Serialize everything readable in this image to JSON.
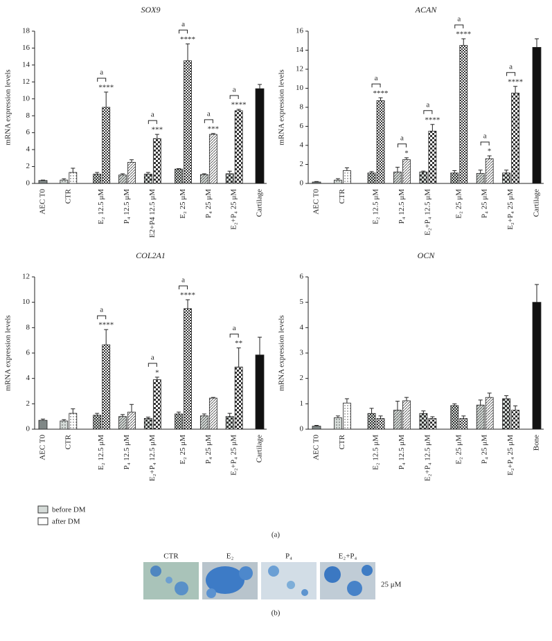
{
  "chart_data": [
    {
      "type": "bar",
      "title": "SOX9",
      "ylabel": "mRNA expression levels",
      "categories": [
        "AEC T0",
        "CTR",
        "E₂ 12.5 μM",
        "P₄ 12.5 μM",
        "E2+P4 12.5 μM",
        "E₂ 25 μM",
        "P₄ 25 μM",
        "E₂+P₄ 25 μM",
        "Cartilage"
      ],
      "ylim": [
        0,
        18
      ],
      "yticks": [
        0,
        2,
        4,
        6,
        8,
        10,
        12,
        14,
        16,
        18
      ],
      "series": [
        {
          "name": "before DM",
          "color": "#d5dbd8",
          "values": [
            null,
            0.4,
            1.1,
            1.0,
            1.1,
            1.7,
            1.05,
            1.15,
            null
          ],
          "errors": [
            null,
            0.15,
            0.2,
            0.15,
            0.2,
            0.05,
            0.1,
            0.3,
            null
          ]
        },
        {
          "name": "after DM",
          "color": "#ffffff",
          "values": [
            null,
            1.3,
            9.0,
            2.5,
            5.3,
            14.5,
            5.8,
            8.6,
            null
          ],
          "errors": [
            null,
            0.5,
            1.8,
            0.3,
            0.5,
            2.0,
            0.1,
            0.15,
            null
          ],
          "stars": [
            null,
            null,
            "****",
            null,
            "***",
            "****",
            "***",
            "****",
            null
          ],
          "brackets": [
            null,
            null,
            "a",
            null,
            "a",
            "a",
            "a",
            "a",
            null
          ]
        },
        {
          "colors": [
            "#7f8786",
            null,
            null,
            null,
            null,
            null,
            null,
            null,
            "#111111"
          ],
          "values": [
            0.35,
            null,
            null,
            null,
            null,
            null,
            null,
            null,
            11.2
          ],
          "errors": [
            0.05,
            null,
            null,
            null,
            null,
            null,
            null,
            null,
            0.5
          ]
        }
      ]
    },
    {
      "type": "bar",
      "title": "ACAN",
      "ylabel": "mRNA expression levels",
      "categories": [
        "AEC T0",
        "CTR",
        "E₂ 12.5 μM",
        "P₄ 12.5 μM",
        "E₂+P₄ 12.5 μM",
        "E₂ 25 μM",
        "P₄ 25 μM",
        "E₂+P₄ 25 μM",
        "Cartilage"
      ],
      "ylim": [
        0,
        16
      ],
      "yticks": [
        0,
        2,
        4,
        6,
        8,
        10,
        12,
        14,
        16
      ],
      "series": [
        {
          "name": "before DM",
          "color": "#d5dbd8",
          "values": [
            null,
            0.35,
            1.1,
            1.2,
            1.2,
            1.1,
            1.05,
            1.1,
            null
          ],
          "errors": [
            null,
            0.15,
            0.15,
            0.5,
            0.1,
            0.25,
            0.35,
            0.3,
            null
          ]
        },
        {
          "name": "after DM",
          "color": "#ffffff",
          "values": [
            null,
            1.35,
            8.7,
            2.5,
            5.5,
            14.5,
            2.6,
            9.5,
            null
          ],
          "errors": [
            null,
            0.3,
            0.3,
            0.2,
            0.7,
            0.7,
            0.3,
            0.7,
            null
          ],
          "stars": [
            null,
            null,
            "****",
            "*",
            "****",
            "****",
            "*",
            "****",
            null
          ],
          "brackets": [
            null,
            null,
            "a",
            "a",
            "a",
            "a",
            "a",
            "a",
            null
          ]
        },
        {
          "colors": [
            "#7f8786",
            null,
            null,
            null,
            null,
            null,
            null,
            null,
            "#111111"
          ],
          "values": [
            0.15,
            null,
            null,
            null,
            null,
            null,
            null,
            null,
            14.3
          ],
          "errors": [
            0.05,
            null,
            null,
            null,
            null,
            null,
            null,
            null,
            0.9
          ]
        }
      ]
    },
    {
      "type": "bar",
      "title": "COL2A1",
      "ylabel": "mRNA expression levels",
      "categories": [
        "AEC T0",
        "CTR",
        "E₂ 12.5 μM",
        "P₄ 12.5 μM",
        "E₂+P₄ 12.5 μM",
        "E₂ 25 μM",
        "P₄ 25 μM",
        "E₂+P₄ 25 μM",
        "Cartilage"
      ],
      "ylim": [
        0,
        12
      ],
      "yticks": [
        0,
        2,
        4,
        6,
        8,
        10,
        12
      ],
      "series": [
        {
          "name": "before DM",
          "color": "#d5dbd8",
          "values": [
            null,
            0.65,
            1.1,
            1.0,
            0.85,
            1.2,
            1.05,
            1.0,
            null
          ],
          "errors": [
            null,
            0.1,
            0.15,
            0.15,
            0.1,
            0.15,
            0.15,
            0.25,
            null
          ]
        },
        {
          "name": "after DM",
          "color": "#ffffff",
          "values": [
            null,
            1.25,
            6.65,
            1.35,
            3.9,
            9.5,
            2.45,
            4.9,
            null
          ],
          "errors": [
            null,
            0.35,
            1.2,
            0.6,
            0.2,
            0.7,
            0.05,
            1.5,
            null
          ],
          "stars": [
            null,
            null,
            "****",
            null,
            "*",
            "****",
            null,
            "**",
            null
          ],
          "brackets": [
            null,
            null,
            "a",
            null,
            "a",
            "a",
            null,
            "a",
            null
          ]
        },
        {
          "colors": [
            "#7f8786",
            null,
            null,
            null,
            null,
            null,
            null,
            null,
            "#111111"
          ],
          "values": [
            0.7,
            null,
            null,
            null,
            null,
            null,
            null,
            null,
            5.85
          ],
          "errors": [
            0.1,
            null,
            null,
            null,
            null,
            null,
            null,
            null,
            1.4
          ]
        }
      ]
    },
    {
      "type": "bar",
      "title": "OCN",
      "ylabel": "mRNA expression levels",
      "categories": [
        "AEC T0",
        "CTR",
        "E₂ 12.5 μM",
        "P₄ 12.5 μM",
        "E₂+P₄ 12.5 μM",
        "E₂ 25 μM",
        "P₄ 25 μM",
        "E₂+P₄ 25 μM",
        "Bone"
      ],
      "ylim": [
        0,
        6
      ],
      "yticks": [
        0,
        1,
        2,
        3,
        4,
        5,
        6
      ],
      "series": [
        {
          "name": "before DM",
          "color": "#d5dbd8",
          "values": [
            null,
            0.45,
            0.62,
            0.75,
            0.62,
            0.93,
            0.95,
            1.2,
            null
          ],
          "errors": [
            null,
            0.07,
            0.2,
            0.35,
            0.1,
            0.07,
            0.2,
            0.12,
            null
          ]
        },
        {
          "name": "after DM",
          "color": "#ffffff",
          "values": [
            null,
            1.03,
            0.42,
            1.12,
            0.42,
            0.42,
            1.25,
            0.75,
            null
          ],
          "errors": [
            null,
            0.17,
            0.1,
            0.13,
            0.07,
            0.1,
            0.17,
            0.17,
            null
          ]
        },
        {
          "colors": [
            "#7f8786",
            null,
            null,
            null,
            null,
            null,
            null,
            null,
            "#111111"
          ],
          "values": [
            0.12,
            null,
            null,
            null,
            null,
            null,
            null,
            null,
            5.0
          ],
          "errors": [
            0.03,
            null,
            null,
            null,
            null,
            null,
            null,
            null,
            0.7
          ]
        }
      ]
    }
  ],
  "panel_labels": [
    "(a)",
    "(b)"
  ],
  "panel_b": {
    "labels": [
      "CTR",
      "E₂",
      "P₄",
      "E₂+P₄"
    ],
    "concentration": "25 μM"
  }
}
